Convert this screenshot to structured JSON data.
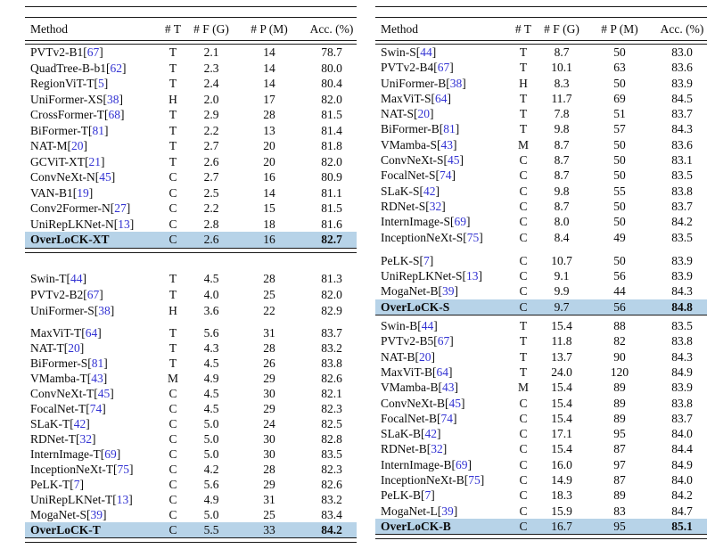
{
  "colors": {
    "highlight": "#b7d3e8",
    "cite": "#3232d2"
  },
  "columns": [
    "Method",
    "# T",
    "# F (G)",
    "# P (M)",
    "Acc. (%)"
  ],
  "left": {
    "block1": [
      {
        "method": "PVTv2-B1",
        "cite": "67",
        "t": "T",
        "f": "2.1",
        "p": "14",
        "acc": "78.7"
      },
      {
        "method": "QuadTree-B-b1",
        "cite": "62",
        "t": "T",
        "f": "2.3",
        "p": "14",
        "acc": "80.0"
      },
      {
        "method": "RegionViT-T",
        "cite": "5",
        "t": "T",
        "f": "2.4",
        "p": "14",
        "acc": "80.4"
      },
      {
        "method": "UniFormer-XS",
        "cite": "38",
        "t": "H",
        "f": "2.0",
        "p": "17",
        "acc": "82.0"
      },
      {
        "method": "CrossFormer-T",
        "cite": "68",
        "t": "T",
        "f": "2.9",
        "p": "28",
        "acc": "81.5"
      },
      {
        "method": "BiFormer-T",
        "cite": "81",
        "t": "T",
        "f": "2.2",
        "p": "13",
        "acc": "81.4"
      },
      {
        "method": "NAT-M",
        "cite": "20",
        "t": "T",
        "f": "2.7",
        "p": "20",
        "acc": "81.8"
      },
      {
        "method": "GCViT-XT",
        "cite": "21",
        "t": "T",
        "f": "2.6",
        "p": "20",
        "acc": "82.0"
      },
      {
        "method": "ConvNeXt-N",
        "cite": "45",
        "t": "C",
        "f": "2.7",
        "p": "16",
        "acc": "80.9"
      },
      {
        "method": "VAN-B1",
        "cite": "19",
        "t": "C",
        "f": "2.5",
        "p": "14",
        "acc": "81.1"
      },
      {
        "method": "Conv2Former-N",
        "cite": "27",
        "t": "C",
        "f": "2.2",
        "p": "15",
        "acc": "81.5"
      },
      {
        "method": "UniRepLKNet-N",
        "cite": "13",
        "t": "C",
        "f": "2.8",
        "p": "18",
        "acc": "81.6"
      },
      {
        "method": "OverLoCK-XT",
        "t": "C",
        "f": "2.6",
        "p": "16",
        "acc": "82.7",
        "hl": true
      }
    ],
    "block2a": [
      {
        "method": "Swin-T",
        "cite": "44",
        "t": "T",
        "f": "4.5",
        "p": "28",
        "acc": "81.3"
      },
      {
        "method": "PVTv2-B2",
        "cite": "67",
        "t": "T",
        "f": "4.0",
        "p": "25",
        "acc": "82.0"
      },
      {
        "method": "UniFormer-S",
        "cite": "38",
        "t": "H",
        "f": "3.6",
        "p": "22",
        "acc": "82.9"
      }
    ],
    "block2b": [
      {
        "method": "MaxViT-T",
        "cite": "64",
        "t": "T",
        "f": "5.6",
        "p": "31",
        "acc": "83.7"
      },
      {
        "method": "NAT-T",
        "cite": "20",
        "t": "T",
        "f": "4.3",
        "p": "28",
        "acc": "83.2"
      },
      {
        "method": "BiFormer-S",
        "cite": "81",
        "t": "T",
        "f": "4.5",
        "p": "26",
        "acc": "83.8"
      },
      {
        "method": "VMamba-T",
        "cite": "43",
        "t": "M",
        "f": "4.9",
        "p": "29",
        "acc": "82.6"
      },
      {
        "method": "ConvNeXt-T",
        "cite": "45",
        "t": "C",
        "f": "4.5",
        "p": "30",
        "acc": "82.1"
      },
      {
        "method": "FocalNet-T",
        "cite": "74",
        "t": "C",
        "f": "4.5",
        "p": "29",
        "acc": "82.3"
      },
      {
        "method": "SLaK-T",
        "cite": "42",
        "t": "C",
        "f": "5.0",
        "p": "24",
        "acc": "82.5"
      },
      {
        "method": "RDNet-T",
        "cite": "32",
        "t": "C",
        "f": "5.0",
        "p": "30",
        "acc": "82.8"
      },
      {
        "method": "InternImage-T",
        "cite": "69",
        "t": "C",
        "f": "5.0",
        "p": "30",
        "acc": "83.5"
      },
      {
        "method": "InceptionNeXt-T",
        "cite": "75",
        "t": "C",
        "f": "4.2",
        "p": "28",
        "acc": "82.3"
      },
      {
        "method": "PeLK-T",
        "cite": "7",
        "t": "C",
        "f": "5.6",
        "p": "29",
        "acc": "82.6"
      },
      {
        "method": "UniRepLKNet-T",
        "cite": "13",
        "t": "C",
        "f": "4.9",
        "p": "31",
        "acc": "83.2"
      },
      {
        "method": "MogaNet-S",
        "cite": "39",
        "t": "C",
        "f": "5.0",
        "p": "25",
        "acc": "83.4"
      },
      {
        "method": "OverLoCK-T",
        "t": "C",
        "f": "5.5",
        "p": "33",
        "acc": "84.2",
        "hl": true
      }
    ]
  },
  "right": {
    "block1": [
      {
        "method": "Swin-S",
        "cite": "44",
        "t": "T",
        "f": "8.7",
        "p": "50",
        "acc": "83.0"
      },
      {
        "method": "PVTv2-B4",
        "cite": "67",
        "t": "T",
        "f": "10.1",
        "p": "63",
        "acc": "83.6"
      },
      {
        "method": "UniFormer-B",
        "cite": "38",
        "t": "H",
        "f": "8.3",
        "p": "50",
        "acc": "83.9"
      },
      {
        "method": "MaxViT-S",
        "cite": "64",
        "t": "T",
        "f": "11.7",
        "p": "69",
        "acc": "84.5"
      },
      {
        "method": "NAT-S",
        "cite": "20",
        "t": "T",
        "f": "7.8",
        "p": "51",
        "acc": "83.7"
      },
      {
        "method": "BiFormer-B",
        "cite": "81",
        "t": "T",
        "f": "9.8",
        "p": "57",
        "acc": "84.3"
      },
      {
        "method": "VMamba-S",
        "cite": "43",
        "t": "M",
        "f": "8.7",
        "p": "50",
        "acc": "83.6"
      },
      {
        "method": "ConvNeXt-S",
        "cite": "45",
        "t": "C",
        "f": "8.7",
        "p": "50",
        "acc": "83.1"
      },
      {
        "method": "FocalNet-S",
        "cite": "74",
        "t": "C",
        "f": "8.7",
        "p": "50",
        "acc": "83.5"
      },
      {
        "method": "SLaK-S",
        "cite": "42",
        "t": "C",
        "f": "9.8",
        "p": "55",
        "acc": "83.8"
      },
      {
        "method": "RDNet-S",
        "cite": "32",
        "t": "C",
        "f": "8.7",
        "p": "50",
        "acc": "83.7"
      },
      {
        "method": "InternImage-S",
        "cite": "69",
        "t": "C",
        "f": "8.0",
        "p": "50",
        "acc": "84.2"
      },
      {
        "method": "InceptionNeXt-S",
        "cite": "75",
        "t": "C",
        "f": "8.4",
        "p": "49",
        "acc": "83.5"
      }
    ],
    "block2": [
      {
        "method": "PeLK-S",
        "cite": "7",
        "t": "C",
        "f": "10.7",
        "p": "50",
        "acc": "83.9"
      },
      {
        "method": "UniRepLKNet-S",
        "cite": "13",
        "t": "C",
        "f": "9.1",
        "p": "56",
        "acc": "83.9"
      },
      {
        "method": "MogaNet-B",
        "cite": "39",
        "t": "C",
        "f": "9.9",
        "p": "44",
        "acc": "84.3"
      },
      {
        "method": "OverLoCK-S",
        "t": "C",
        "f": "9.7",
        "p": "56",
        "acc": "84.8",
        "hl": true
      }
    ],
    "block3": [
      {
        "method": "Swin-B",
        "cite": "44",
        "t": "T",
        "f": "15.4",
        "p": "88",
        "acc": "83.5"
      },
      {
        "method": "PVTv2-B5",
        "cite": "67",
        "t": "T",
        "f": "11.8",
        "p": "82",
        "acc": "83.8"
      },
      {
        "method": "NAT-B",
        "cite": "20",
        "t": "T",
        "f": "13.7",
        "p": "90",
        "acc": "84.3"
      },
      {
        "method": "MaxViT-B",
        "cite": "64",
        "t": "T",
        "f": "24.0",
        "p": "120",
        "acc": "84.9"
      },
      {
        "method": "VMamba-B",
        "cite": "43",
        "t": "M",
        "f": "15.4",
        "p": "89",
        "acc": "83.9"
      },
      {
        "method": "ConvNeXt-B",
        "cite": "45",
        "t": "C",
        "f": "15.4",
        "p": "89",
        "acc": "83.8"
      },
      {
        "method": "FocalNet-B",
        "cite": "74",
        "t": "C",
        "f": "15.4",
        "p": "89",
        "acc": "83.7"
      },
      {
        "method": "SLaK-B",
        "cite": "42",
        "t": "C",
        "f": "17.1",
        "p": "95",
        "acc": "84.0"
      },
      {
        "method": "RDNet-B",
        "cite": "32",
        "t": "C",
        "f": "15.4",
        "p": "87",
        "acc": "84.4"
      },
      {
        "method": "InternImage-B",
        "cite": "69",
        "t": "C",
        "f": "16.0",
        "p": "97",
        "acc": "84.9"
      },
      {
        "method": "InceptionNeXt-B",
        "cite": "75",
        "t": "C",
        "f": "14.9",
        "p": "87",
        "acc": "84.0"
      },
      {
        "method": "PeLK-B",
        "cite": "7",
        "t": "C",
        "f": "18.3",
        "p": "89",
        "acc": "84.2"
      },
      {
        "method": "MogaNet-L",
        "cite": "39",
        "t": "C",
        "f": "15.9",
        "p": "83",
        "acc": "84.7"
      },
      {
        "method": "OverLoCK-B",
        "t": "C",
        "f": "16.7",
        "p": "95",
        "acc": "85.1",
        "hl": true
      }
    ]
  }
}
